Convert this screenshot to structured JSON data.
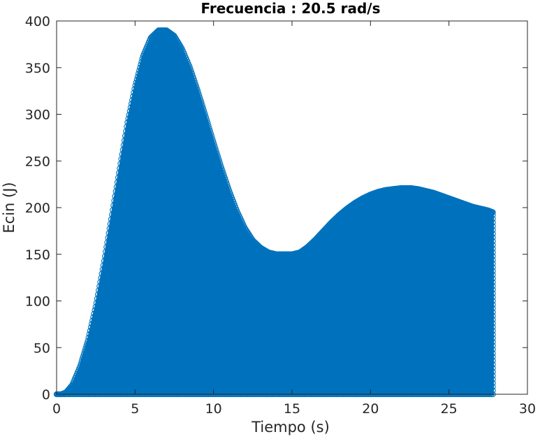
{
  "chart_data": {
    "type": "scatter",
    "title": "Frecuencia : 20.5 rad/s",
    "xlabel": "Tiempo (s)",
    "ylabel": "Ecin (J)",
    "xlim": [
      0,
      30
    ],
    "ylim": [
      0,
      400
    ],
    "xticks": [
      0,
      5,
      10,
      15,
      20,
      25,
      30
    ],
    "yticks": [
      0,
      50,
      100,
      150,
      200,
      250,
      300,
      350,
      400
    ],
    "grid": false,
    "marker": "circle",
    "colors": {
      "series": "#0072bd",
      "axes": "#262626",
      "background": "#ffffff"
    },
    "series": [
      {
        "angular_frequency_rad_s": 20.5,
        "x_range": [
          0,
          27.8
        ],
        "y_min": 0,
        "envelope": {
          "x": [
            0,
            0.3,
            0.6,
            1.0,
            1.5,
            2.0,
            2.5,
            3.0,
            3.5,
            4.0,
            4.5,
            5.0,
            5.5,
            6.0,
            6.5,
            7.0,
            7.5,
            8.0,
            8.5,
            9.0,
            9.5,
            10.0,
            10.5,
            11.0,
            11.5,
            12.0,
            12.5,
            13.0,
            13.5,
            14.0,
            14.5,
            15.0,
            15.5,
            16.0,
            16.5,
            17.0,
            17.5,
            18.0,
            18.5,
            19.0,
            19.5,
            20.0,
            20.5,
            21.0,
            21.5,
            22.0,
            22.5,
            23.0,
            23.5,
            24.0,
            24.5,
            25.0,
            25.5,
            26.0,
            26.5,
            27.0,
            27.5,
            27.8
          ],
          "y": [
            0,
            0,
            2,
            10,
            30,
            58,
            95,
            140,
            190,
            240,
            290,
            330,
            362,
            382,
            390,
            390,
            384,
            370,
            350,
            325,
            298,
            270,
            243,
            218,
            196,
            178,
            165,
            157,
            152,
            150,
            150,
            150,
            152,
            158,
            166,
            175,
            184,
            192,
            199,
            205,
            210,
            214,
            217,
            219,
            220,
            221,
            221,
            220,
            218,
            216,
            213,
            210,
            207,
            204,
            201,
            199,
            197,
            195
          ]
        }
      }
    ]
  }
}
